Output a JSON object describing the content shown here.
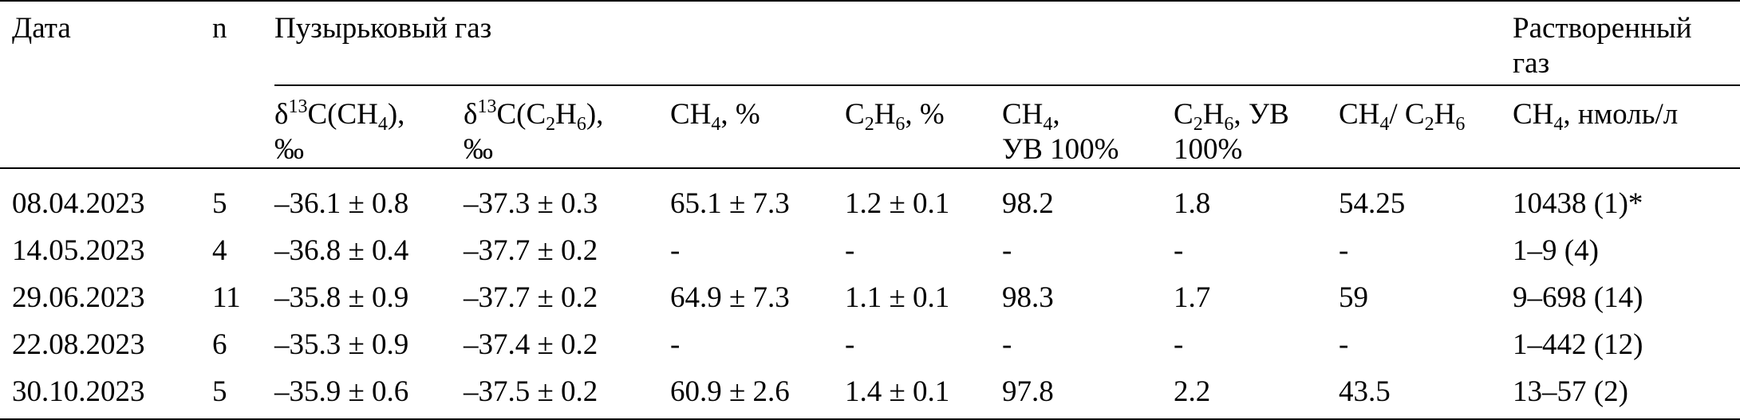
{
  "header": {
    "date": "Дата",
    "n": "n",
    "bubble_gas": "Пузырьковый газ",
    "dissolved_gas_line1": "Растворенный",
    "dissolved_gas_line2": "газ",
    "cols": [
      {
        "pre": "δ",
        "sup": "13",
        "mid": "C(CH",
        "sub": "4",
        "post": "),",
        "line2": "‰"
      },
      {
        "pre": "δ",
        "sup": "13",
        "mid": "C(C",
        "sub": "2",
        "mid2": "H",
        "sub2": "6",
        "post": "),",
        "line2": "‰"
      },
      {
        "pre": "CH",
        "sub": "4",
        "post": ", %"
      },
      {
        "pre": "C",
        "sub": "2",
        "mid": "H",
        "sub2": "6",
        "post": ", %"
      },
      {
        "pre": "CH",
        "sub": "4",
        "post": ",",
        "line2": "УВ 100%"
      },
      {
        "pre": "C",
        "sub": "2",
        "mid": "H",
        "sub2": "6",
        "post": ", УВ",
        "line2": "100%"
      },
      {
        "pre": "CH",
        "sub": "4",
        "post": "/ C",
        "sub3": "2",
        "mid3": "H",
        "sub4": "6"
      },
      {
        "pre": "CH",
        "sub": "4",
        "post": ", нмоль/л"
      }
    ]
  },
  "rows": [
    [
      "08.04.2023",
      "5",
      "–36.1 ± 0.8",
      "–37.3 ± 0.3",
      "65.1 ± 7.3",
      "1.2 ± 0.1",
      "98.2",
      "1.8",
      "54.25",
      "10438 (1)*"
    ],
    [
      "14.05.2023",
      "4",
      "–36.8 ± 0.4",
      "–37.7 ± 0.2",
      "-",
      "-",
      "-",
      "-",
      "-",
      "1–9 (4)"
    ],
    [
      "29.06.2023",
      "11",
      "–35.8 ± 0.9",
      "–37.7 ± 0.2",
      "64.9 ± 7.3",
      "1.1 ± 0.1",
      "98.3",
      "1.7",
      "59",
      "9–698 (14)"
    ],
    [
      "22.08.2023",
      "6",
      "–35.3 ± 0.9",
      "–37.4 ± 0.2",
      "-",
      "-",
      "-",
      "-",
      "-",
      "1–442 (12)"
    ],
    [
      "30.10.2023",
      "5",
      "–35.9 ± 0.6",
      "–37.5 ± 0.2",
      "60.9 ± 2.6",
      "1.4 ± 0.1",
      "97.8",
      "2.2",
      "43.5",
      "13–57 (2)"
    ]
  ]
}
